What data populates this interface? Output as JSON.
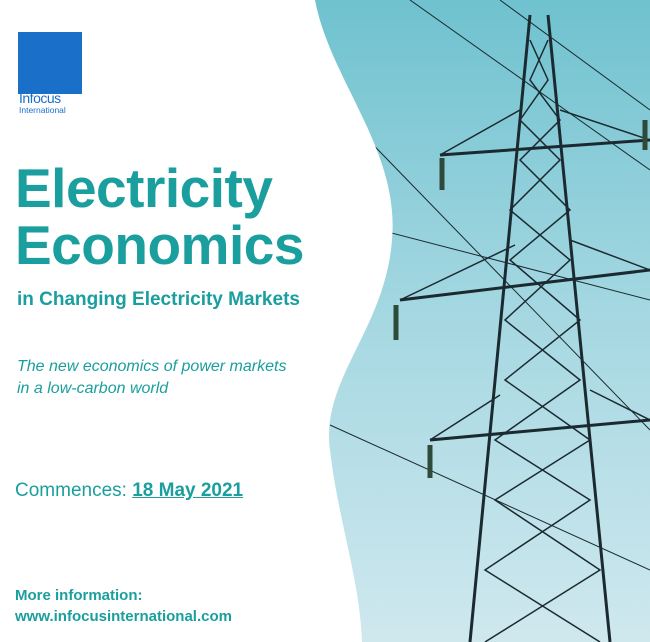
{
  "logo": {
    "line1": "Infocus",
    "line2": "International",
    "color": "#1a6fc9"
  },
  "title": {
    "line1": "Electricity",
    "line2": "Economics"
  },
  "subtitle": "in Changing Electricity Markets",
  "tagline": {
    "line1": "The new economics of power markets",
    "line2": "in a low-carbon world"
  },
  "commences": {
    "label": "Commences:",
    "date": "18 May 2021"
  },
  "more_info": {
    "label": "More information:",
    "url": "www.infocusinternational.com"
  },
  "colors": {
    "accent": "#1a9e9e",
    "sky": "#8fcfdc"
  },
  "photo": {
    "subject": "electricity-pylon-icon"
  }
}
